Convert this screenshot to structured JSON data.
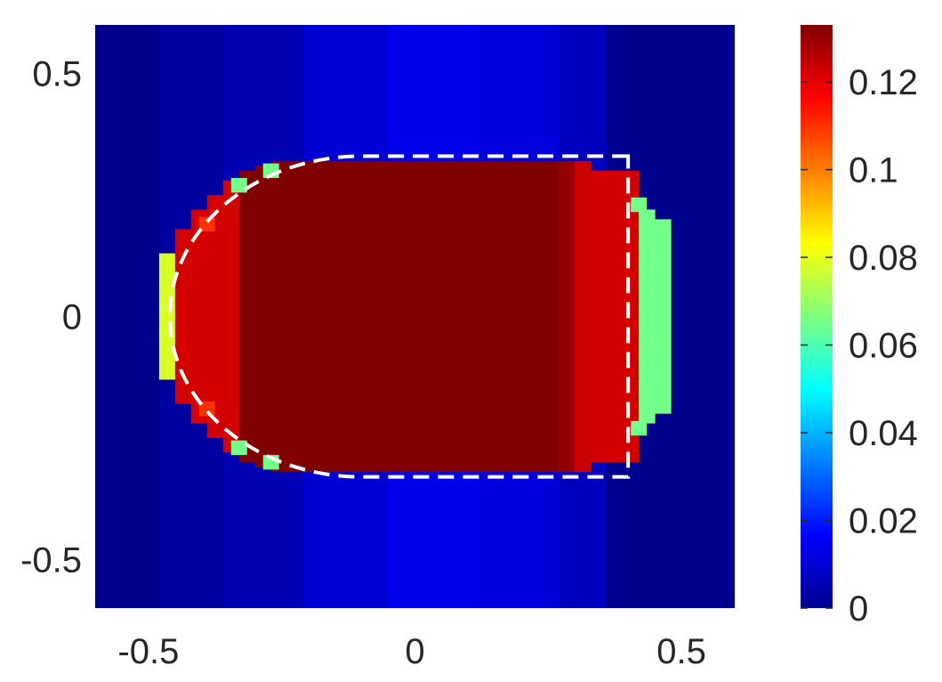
{
  "chart_data": {
    "type": "heatmap",
    "title": "",
    "xlabel": "",
    "ylabel": "",
    "xlim": [
      -0.6,
      0.6
    ],
    "ylim": [
      -0.6,
      0.6
    ],
    "x_ticks": [
      "-0.5",
      "0",
      "0.5"
    ],
    "x_tick_values": [
      -0.5,
      0,
      0.5
    ],
    "y_ticks": [
      "0.5",
      "0",
      "-0.5"
    ],
    "y_tick_values": [
      0.5,
      0,
      -0.5
    ],
    "colormap": "jet",
    "clim": [
      0,
      0.133
    ],
    "colorbar": {
      "ticks": [
        "0.12",
        "0.1",
        "0.08",
        "0.06",
        "0.04",
        "0.02",
        "0"
      ],
      "tick_values": [
        0.12,
        0.1,
        0.08,
        0.06,
        0.04,
        0.02,
        0
      ]
    },
    "field": {
      "background_x_breaks": [
        -0.6,
        -0.48,
        -0.36,
        -0.21,
        -0.05,
        0.12,
        0.27,
        0.36,
        0.6
      ],
      "background_values": [
        0.002,
        0.004,
        0.007,
        0.011,
        0.014,
        0.012,
        0.008,
        0.002
      ],
      "region_columns": [
        {
          "x0": -0.48,
          "x1": -0.45,
          "y_half": 0.13,
          "value": 0.078
        },
        {
          "x0": -0.45,
          "x1": -0.42,
          "y_half": 0.18,
          "value": 0.122
        },
        {
          "x0": -0.42,
          "x1": -0.39,
          "y_half": 0.22,
          "value": 0.122
        },
        {
          "x0": -0.39,
          "x1": -0.36,
          "y_half": 0.25,
          "value": 0.122
        },
        {
          "x0": -0.36,
          "x1": -0.33,
          "y_half": 0.28,
          "value": 0.122
        },
        {
          "x0": -0.33,
          "x1": -0.3,
          "y_half": 0.3,
          "value": 0.133
        },
        {
          "x0": -0.3,
          "x1": -0.27,
          "y_half": 0.31,
          "value": 0.133
        },
        {
          "x0": -0.27,
          "x1": 0.27,
          "y_half": 0.32,
          "value": 0.133
        },
        {
          "x0": 0.27,
          "x1": 0.3,
          "y_half": 0.32,
          "value": 0.13
        },
        {
          "x0": 0.3,
          "x1": 0.33,
          "y_half": 0.32,
          "value": 0.123
        },
        {
          "x0": 0.33,
          "x1": 0.42,
          "y_half": 0.3,
          "value": 0.122
        },
        {
          "x0": 0.42,
          "x1": 0.45,
          "y_half": 0.22,
          "value": 0.065
        },
        {
          "x0": 0.45,
          "x1": 0.48,
          "y_half": 0.2,
          "value": 0.065
        }
      ],
      "accent_cells": [
        {
          "x": -0.39,
          "y": 0.19,
          "value": 0.11
        },
        {
          "x": -0.39,
          "y": -0.19,
          "value": 0.11
        },
        {
          "x": -0.33,
          "y": 0.27,
          "value": 0.065
        },
        {
          "x": -0.33,
          "y": -0.27,
          "value": 0.065
        },
        {
          "x": -0.27,
          "y": 0.3,
          "value": 0.065
        },
        {
          "x": -0.27,
          "y": -0.3,
          "value": 0.065
        },
        {
          "x": 0.42,
          "y": 0.23,
          "value": 0.065
        },
        {
          "x": 0.42,
          "y": -0.23,
          "value": 0.065
        }
      ]
    },
    "overlay_outline": {
      "style": "white dashed",
      "x_left": -0.46,
      "x_right": 0.4,
      "half_height": 0.33,
      "nose_x_end": -0.1
    },
    "grid": false,
    "legend": "none"
  }
}
